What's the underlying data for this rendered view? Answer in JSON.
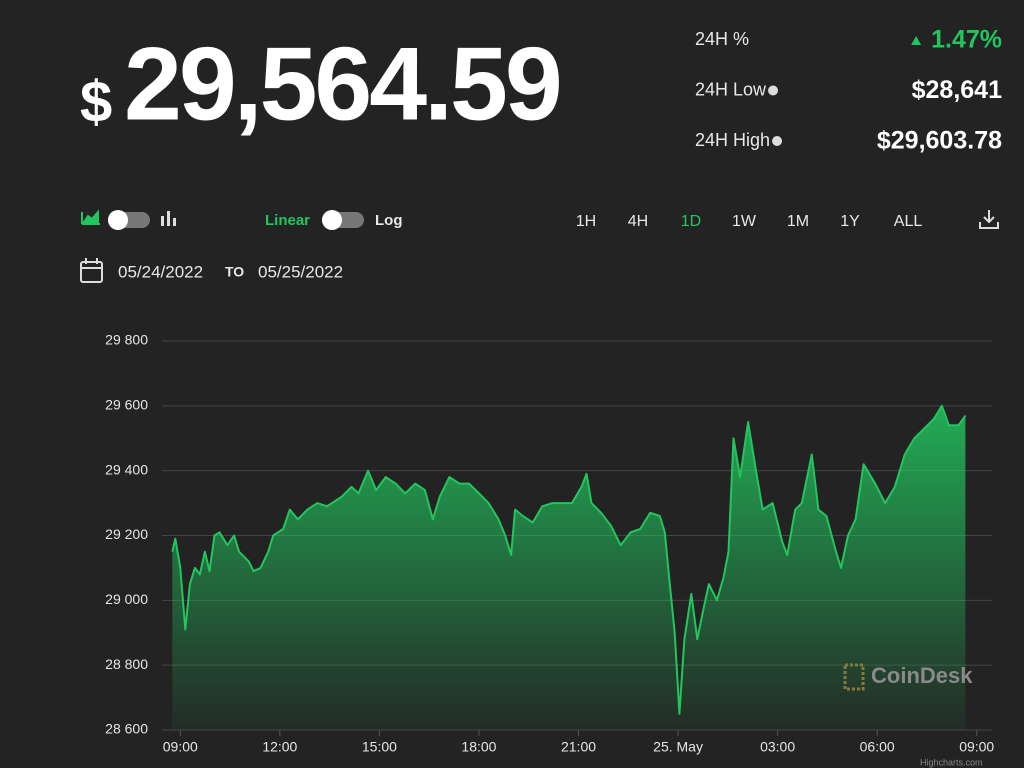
{
  "header": {
    "currency": "$",
    "price": "29,564.59"
  },
  "stats": [
    {
      "label": "24H %",
      "value": "1.47%"
    },
    {
      "label": "24H Low",
      "value": "$28,641"
    },
    {
      "label": "24H High",
      "value": "$29,603.78"
    }
  ],
  "toolbar": {
    "scales": [
      "Linear",
      "Log"
    ],
    "ranges": [
      "1H",
      "4H",
      "1D",
      "1W",
      "1M",
      "1Y",
      "ALL"
    ],
    "selected_range_index": 2
  },
  "date_range": {
    "from": "05/24/2022",
    "separator": "TO",
    "to": "05/25/2022"
  },
  "watermark": "CoinDesk",
  "credit": "Highcharts.com",
  "chart_data": {
    "type": "area",
    "color": "#22c55e",
    "x": [
      -0.24,
      -0.15,
      0,
      0.15,
      0.29,
      0.44,
      0.59,
      0.74,
      0.88,
      1.03,
      1.18,
      1.42,
      1.62,
      1.77,
      2.06,
      2.21,
      2.42,
      2.65,
      2.8,
      3.1,
      3.3,
      3.54,
      3.83,
      4.13,
      4.42,
      4.87,
      5.16,
      5.37,
      5.66,
      5.9,
      6.19,
      6.49,
      6.78,
      7.08,
      7.37,
      7.61,
      7.82,
      8.11,
      8.41,
      8.7,
      9,
      9.29,
      9.59,
      9.79,
      9.97,
      10.09,
      10.32,
      10.62,
      10.91,
      11.21,
      11.5,
      11.8,
      12.09,
      12.24,
      12.39,
      12.68,
      12.98,
      13.27,
      13.57,
      13.86,
      14.16,
      14.45,
      14.6,
      14.75,
      14.9,
      15.04,
      15.19,
      15.4,
      15.58,
      15.78,
      15.93,
      16.17,
      16.37,
      16.52,
      16.67,
      16.87,
      17.11,
      17.35,
      17.55,
      17.85,
      18.14,
      18.29,
      18.53,
      18.73,
      19.03,
      19.23,
      19.47,
      19.76,
      19.91,
      20.12,
      20.35,
      20.59,
      20.94,
      21.24,
      21.53,
      21.83,
      22.12,
      22.42,
      22.71,
      22.95,
      23.16,
      23.45,
      23.66
    ],
    "series": [
      {
        "values": [
          29150,
          29190,
          29100,
          28910,
          29050,
          29100,
          29080,
          29150,
          29090,
          29200,
          29210,
          29170,
          29200,
          29150,
          29120,
          29090,
          29100,
          29150,
          29200,
          29220,
          29280,
          29250,
          29280,
          29300,
          29290,
          29320,
          29350,
          29330,
          29400,
          29340,
          29380,
          29360,
          29330,
          29360,
          29340,
          29250,
          29320,
          29380,
          29360,
          29360,
          29330,
          29300,
          29250,
          29200,
          29140,
          29280,
          29260,
          29240,
          29290,
          29300,
          29300,
          29300,
          29350,
          29390,
          29300,
          29270,
          29230,
          29170,
          29210,
          29220,
          29270,
          29260,
          29210,
          29050,
          28900,
          28650,
          28880,
          29020,
          28880,
          28980,
          29050,
          29000,
          29070,
          29150,
          29500,
          29380,
          29550,
          29400,
          29280,
          29300,
          29180,
          29140,
          29280,
          29300,
          29450,
          29280,
          29260,
          29150,
          29100,
          29200,
          29250,
          29420,
          29360,
          29300,
          29350,
          29450,
          29500,
          29530,
          29560,
          29600,
          29540,
          29540,
          29570
        ]
      }
    ],
    "xlim": [
      -0.25,
      24.4
    ],
    "xticks": [
      {
        "value": 0,
        "label": "09:00"
      },
      {
        "value": 3,
        "label": "12:00"
      },
      {
        "value": 6,
        "label": "15:00"
      },
      {
        "value": 9,
        "label": "18:00"
      },
      {
        "value": 12,
        "label": "21:00"
      },
      {
        "value": 15,
        "label": "25. May"
      },
      {
        "value": 18,
        "label": "03:00"
      },
      {
        "value": 21,
        "label": "06:00"
      },
      {
        "value": 24,
        "label": "09:00"
      }
    ],
    "ylim": [
      28600,
      29800
    ],
    "yticks": [
      {
        "value": 28600,
        "label": "28 600"
      },
      {
        "value": 28800,
        "label": "28 800"
      },
      {
        "value": 29000,
        "label": "29 000"
      },
      {
        "value": 29200,
        "label": "29 200"
      },
      {
        "value": 29400,
        "label": "29 400"
      },
      {
        "value": 29600,
        "label": "29 600"
      },
      {
        "value": 29800,
        "label": "29 800"
      }
    ],
    "grid": true
  }
}
